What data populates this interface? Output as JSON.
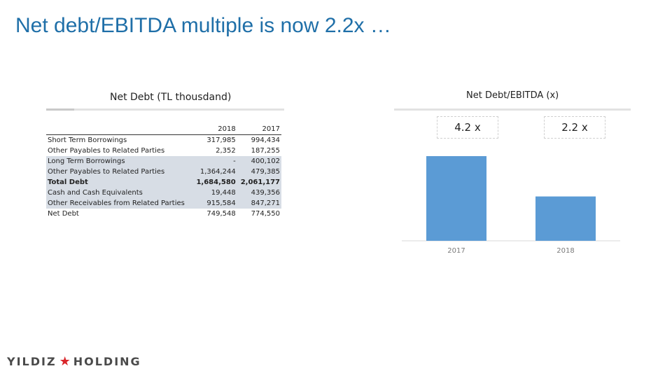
{
  "slide": {
    "title": "Net debt/EBITDA multiple is now 2.2x …",
    "logo_left": "YILDIZ",
    "logo_right": "HOLDING"
  },
  "table": {
    "title": "Net Debt (TL thousdand)",
    "columns": [
      "2018",
      "2017"
    ],
    "rows": [
      {
        "label": "Short Term Borrowings",
        "v2018": "317,985",
        "v2017": "994,434",
        "shaded": false,
        "bold": false
      },
      {
        "label": "Other Payables to Related Parties",
        "v2018": "2,352",
        "v2017": "187,255",
        "shaded": false,
        "bold": false
      },
      {
        "label": "Long Term Borrowings",
        "v2018": "-",
        "v2017": "400,102",
        "shaded": true,
        "bold": false
      },
      {
        "label": "Other Payables to Related Parties",
        "v2018": "1,364,244",
        "v2017": "479,385",
        "shaded": true,
        "bold": false
      },
      {
        "label": "Total Debt",
        "v2018": "1,684,580",
        "v2017": "2,061,177",
        "shaded": true,
        "bold": true
      },
      {
        "label": "Cash and Cash Equivalents",
        "v2018": "19,448",
        "v2017": "439,356",
        "shaded": true,
        "bold": false
      },
      {
        "label": "Other Receivables from Related Parties",
        "v2018": "915,584",
        "v2017": "847,271",
        "shaded": true,
        "bold": false
      },
      {
        "label": "Net Debt",
        "v2018": "749,548",
        "v2017": "774,550",
        "shaded": false,
        "bold": false
      }
    ]
  },
  "chart_data": {
    "type": "bar",
    "title": "Net Debt/EBITDA (x)",
    "categories": [
      "2017",
      "2018"
    ],
    "values": [
      4.2,
      2.2
    ],
    "value_labels": [
      "4.2 x",
      "2.2 x"
    ],
    "ylim": [
      0,
      5
    ],
    "bar_color": "#5b9bd5",
    "grid": false,
    "legend": "none"
  }
}
